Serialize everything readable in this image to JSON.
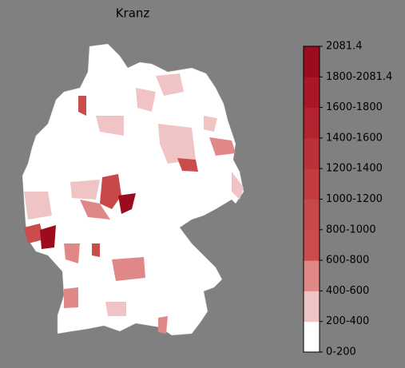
{
  "title": "Kranz",
  "colorbar": {
    "labels": [
      "0-200",
      "200-400",
      "400-600",
      "600-800",
      "800-1000",
      "1000-1200",
      "1200-1400",
      "1400-1600",
      "1600-1800",
      "1800-2081.4",
      "2081.4"
    ],
    "colors": [
      "#ffffff",
      "#f0c4c4",
      "#e08888",
      "#cc4c4c",
      "#c84848",
      "#c23c40",
      "#bc3038",
      "#b42430",
      "#aa1828",
      "#9c0c1e"
    ]
  }
}
